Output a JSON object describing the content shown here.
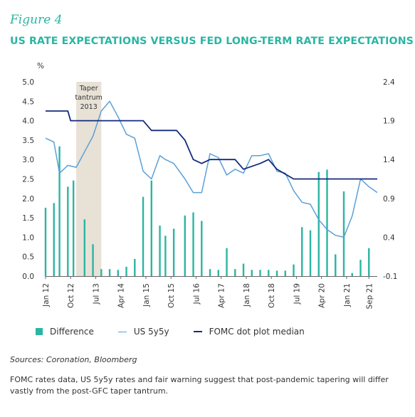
{
  "figure_label": "Figure 4",
  "title": "US RATE EXPECTATIONS VERSUS FED LONG-TERM RATE EXPECTATIONS",
  "sources": "Sources: Coronation, Bloomberg",
  "note": "FOMC rates data, US 5y5y rates and fair warning suggest that post-pandemic tapering will differ vastly from the post-GFC taper tantrum.",
  "colors": {
    "accent": "#2bb5a3",
    "us5y5y": "#5aa0d8",
    "fomc": "#142a7a",
    "taper_band": "#e8e1d6"
  },
  "chart_data": {
    "type": "line",
    "left_axis_unit": "%",
    "left_ticks": [
      "5.0",
      "4.5",
      "4.0",
      "3.5",
      "3.0",
      "2.5",
      "2.0",
      "1.5",
      "1.0",
      "0.5",
      "0.0"
    ],
    "right_ticks": [
      "2.4",
      "1.9",
      "1.4",
      "0.9",
      "0.4",
      "-0.1"
    ],
    "ylim_left": [
      0,
      5
    ],
    "ylim_right": [
      -0.1,
      2.4
    ],
    "x_ticks": [
      "Jan 12",
      "Oct 12",
      "Jul 13",
      "Apr 14",
      "Jan 15",
      "Oct 15",
      "Jul 16",
      "Apr 17",
      "Jan 18",
      "Oct 18",
      "Jul 19",
      "Apr 20",
      "Jan 21",
      "Sep 21"
    ],
    "x_range": [
      "2012-01",
      "2021-12"
    ],
    "taper_band": {
      "label_lines": [
        "Taper",
        "tantrum",
        "2013"
      ],
      "start": "2012-12",
      "end": "2013-09"
    },
    "legend": [
      "Difference",
      "US 5y5y",
      "FOMC dot plot median"
    ],
    "series": [
      {
        "name": "US 5y5y",
        "axis": "left",
        "points": [
          [
            "2012-01",
            3.55
          ],
          [
            "2012-04",
            3.45
          ],
          [
            "2012-06",
            2.65
          ],
          [
            "2012-09",
            2.85
          ],
          [
            "2012-12",
            2.8
          ],
          [
            "2013-03",
            3.2
          ],
          [
            "2013-06",
            3.6
          ],
          [
            "2013-09",
            4.25
          ],
          [
            "2013-12",
            4.5
          ],
          [
            "2014-03",
            4.1
          ],
          [
            "2014-06",
            3.65
          ],
          [
            "2014-09",
            3.55
          ],
          [
            "2014-12",
            2.7
          ],
          [
            "2015-03",
            2.5
          ],
          [
            "2015-06",
            3.1
          ],
          [
            "2015-08",
            3.0
          ],
          [
            "2015-11",
            2.9
          ],
          [
            "2016-03",
            2.5
          ],
          [
            "2016-06",
            2.15
          ],
          [
            "2016-09",
            2.15
          ],
          [
            "2016-12",
            3.15
          ],
          [
            "2017-03",
            3.05
          ],
          [
            "2017-06",
            2.6
          ],
          [
            "2017-09",
            2.75
          ],
          [
            "2017-12",
            2.65
          ],
          [
            "2018-03",
            3.1
          ],
          [
            "2018-06",
            3.1
          ],
          [
            "2018-09",
            3.15
          ],
          [
            "2018-12",
            2.7
          ],
          [
            "2019-03",
            2.65
          ],
          [
            "2019-06",
            2.2
          ],
          [
            "2019-09",
            1.9
          ],
          [
            "2019-12",
            1.85
          ],
          [
            "2020-03",
            1.45
          ],
          [
            "2020-06",
            1.2
          ],
          [
            "2020-09",
            1.05
          ],
          [
            "2020-12",
            1.0
          ],
          [
            "2021-03",
            1.55
          ],
          [
            "2021-06",
            2.5
          ],
          [
            "2021-09",
            2.3
          ],
          [
            "2021-12",
            2.15
          ]
        ]
      },
      {
        "name": "FOMC dot plot median",
        "axis": "left",
        "points": [
          [
            "2012-01",
            4.25
          ],
          [
            "2012-09",
            4.25
          ],
          [
            "2012-10",
            4.0
          ],
          [
            "2014-12",
            4.0
          ],
          [
            "2015-03",
            3.75
          ],
          [
            "2015-12",
            3.75
          ],
          [
            "2016-03",
            3.5
          ],
          [
            "2016-06",
            3.0
          ],
          [
            "2016-09",
            2.9
          ],
          [
            "2016-12",
            3.0
          ],
          [
            "2017-09",
            3.0
          ],
          [
            "2017-12",
            2.75
          ],
          [
            "2018-06",
            2.9
          ],
          [
            "2018-09",
            3.0
          ],
          [
            "2018-12",
            2.75
          ],
          [
            "2019-06",
            2.5
          ],
          [
            "2021-12",
            2.5
          ]
        ]
      },
      {
        "name": "Difference",
        "axis": "right",
        "type": "bar",
        "points": [
          [
            "2012-01",
            0.78
          ],
          [
            "2012-04",
            0.84
          ],
          [
            "2012-06",
            1.57
          ],
          [
            "2012-09",
            1.05
          ],
          [
            "2012-11",
            1.13
          ],
          [
            "2013-03",
            0.63
          ],
          [
            "2013-06",
            0.31
          ],
          [
            "2013-09",
            -0.01
          ],
          [
            "2013-12",
            -0.01
          ],
          [
            "2014-03",
            -0.02
          ],
          [
            "2014-06",
            0.02
          ],
          [
            "2014-09",
            0.12
          ],
          [
            "2014-12",
            0.92
          ],
          [
            "2015-03",
            1.13
          ],
          [
            "2015-06",
            0.55
          ],
          [
            "2015-08",
            0.42
          ],
          [
            "2015-11",
            0.51
          ],
          [
            "2016-03",
            0.68
          ],
          [
            "2016-06",
            0.72
          ],
          [
            "2016-09",
            0.61
          ],
          [
            "2016-12",
            -0.01
          ],
          [
            "2017-03",
            -0.02
          ],
          [
            "2017-06",
            0.26
          ],
          [
            "2017-09",
            -0.01
          ],
          [
            "2017-12",
            0.06
          ],
          [
            "2018-03",
            -0.02
          ],
          [
            "2018-06",
            -0.02
          ],
          [
            "2018-09",
            -0.02
          ],
          [
            "2018-12",
            -0.03
          ],
          [
            "2019-03",
            -0.03
          ],
          [
            "2019-06",
            0.05
          ],
          [
            "2019-09",
            0.53
          ],
          [
            "2019-12",
            0.49
          ],
          [
            "2020-03",
            1.24
          ],
          [
            "2020-06",
            1.27
          ],
          [
            "2020-09",
            0.18
          ],
          [
            "2020-12",
            0.99
          ],
          [
            "2021-03",
            -0.06
          ],
          [
            "2021-06",
            0.11
          ],
          [
            "2021-09",
            0.26
          ]
        ]
      }
    ]
  }
}
